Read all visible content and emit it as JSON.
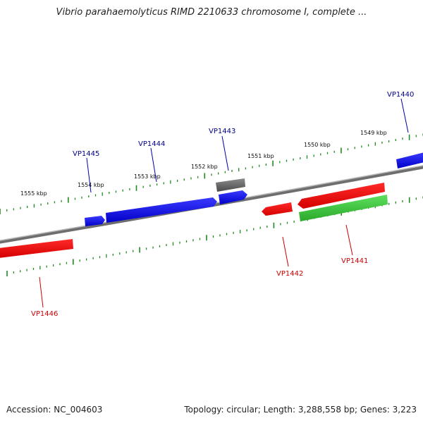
{
  "title": "Vibrio parahaemolyticus RIMD 2210633 chromosome I, complete ...",
  "footer": {
    "accession": "Accession: NC_004603",
    "summary": "Topology: circular; Length: 3,288,558 bp; Genes: 3,223"
  },
  "colors": {
    "backbone": "#8a8a8a",
    "tick": "#1f8a1f",
    "forward_gene": "#0000e6",
    "reverse_gene": "#e60000",
    "rna_gene": "#3cbf3c",
    "pseudo_gene": "#606060",
    "forward_label": "#00008b",
    "reverse_label": "#cc0000"
  },
  "scale_labels": [
    "1549 kbp",
    "1550 kbp",
    "1551 kbp",
    "1552 kbp",
    "1553 kbp",
    "1554 kbp",
    "1555 kbp"
  ],
  "genes": [
    {
      "locus": "VP1440",
      "strand": "forward"
    },
    {
      "locus": "VP1443",
      "strand": "forward"
    },
    {
      "locus": "VP1444",
      "strand": "forward"
    },
    {
      "locus": "VP1445",
      "strand": "forward"
    },
    {
      "locus": "VP1441",
      "strand": "reverse"
    },
    {
      "locus": "VP1442",
      "strand": "reverse"
    },
    {
      "locus": "VP1446",
      "strand": "reverse"
    }
  ]
}
